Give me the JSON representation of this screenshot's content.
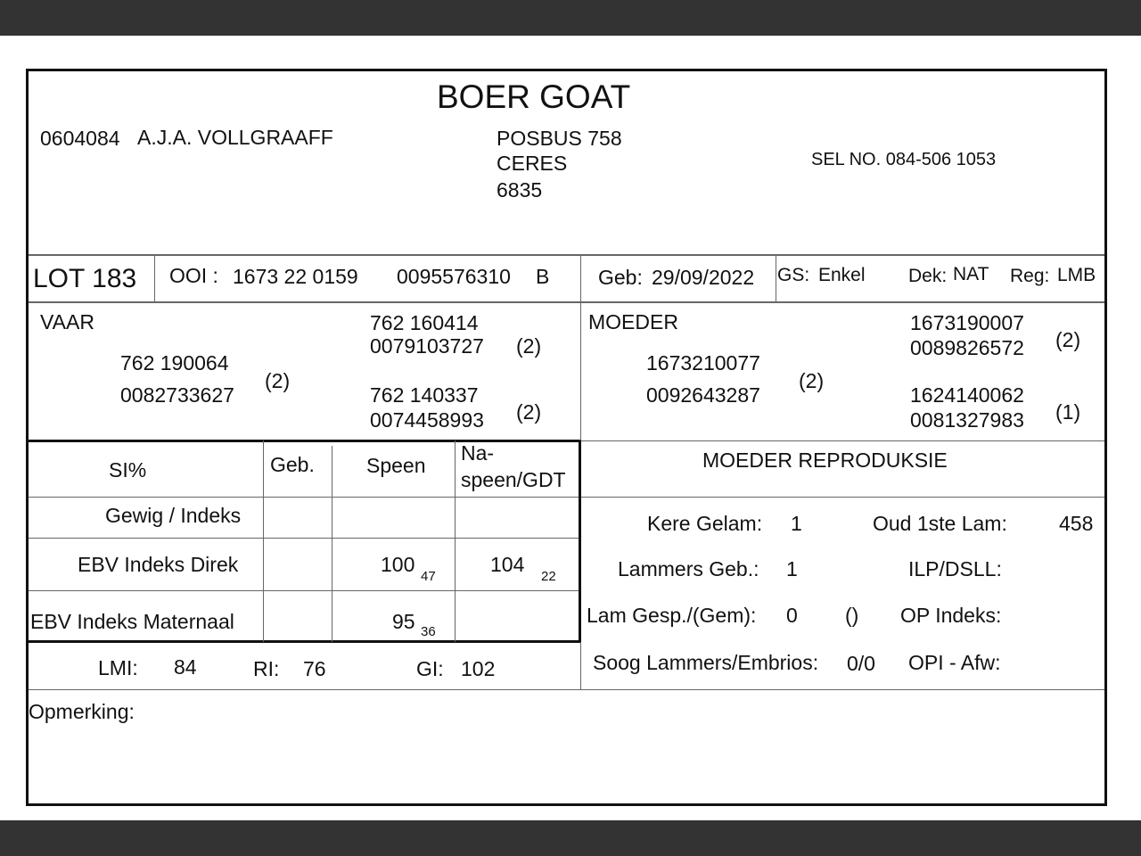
{
  "title": "BOER GOAT",
  "owner": {
    "code": "0604084",
    "name": "A.J.A. VOLLGRAAFF",
    "address": [
      "POSBUS 758",
      "CERES",
      "6835"
    ],
    "phone": "SEL NO. 084-506 1053"
  },
  "lot": {
    "label": "LOT 183",
    "ooi_label": "OOI :",
    "ooi_id": "1673 22 0159",
    "ooi_no": "0095576310",
    "ooi_class": "B",
    "geb_label": "Geb:",
    "geb": "29/09/2022",
    "gs_label": "GS:",
    "gs": "Enkel",
    "dek_label": "Dek:",
    "dek": "NAT",
    "reg_label": "Reg:",
    "reg": "LMB"
  },
  "vaar": {
    "label": "VAAR",
    "id": "762 190064",
    "no": "0082733627",
    "count": "(2)",
    "sire": {
      "id": "762 160414",
      "no": "0079103727",
      "count": "(2)"
    },
    "dam": {
      "id": "762 140337",
      "no": "0074458993",
      "count": "(2)"
    }
  },
  "moeder": {
    "label": "MOEDER",
    "id": "1673210077",
    "no": "0092643287",
    "count": "(2)",
    "sire": {
      "id": "1673190007",
      "no": "0089826572",
      "count": "(2)"
    },
    "dam": {
      "id": "1624140062",
      "no": "0081327983",
      "count": "(1)"
    }
  },
  "ebv": {
    "headers": [
      "SI%",
      "Geb.",
      "Speen",
      "Na-",
      "speen/GDT"
    ],
    "rows": [
      {
        "label": "Gewig / Indeks"
      },
      {
        "label": "EBV Indeks Direk",
        "speen": "100",
        "speen_acc": "47",
        "naspeen": "104",
        "naspeen_acc": "22"
      },
      {
        "label": "EBV Indeks Maternaal",
        "speen": "95",
        "speen_acc": "36"
      }
    ]
  },
  "indices": {
    "lmi_label": "LMI:",
    "lmi": "84",
    "ri_label": "RI:",
    "ri": "76",
    "gi_label": "GI:",
    "gi": "102"
  },
  "repro": {
    "title": "MOEDER REPRODUKSIE",
    "kere_label": "Kere Gelam:",
    "kere": "1",
    "oud_label": "Oud 1ste Lam:",
    "oud": "458",
    "lammers_label": "Lammers Geb.:",
    "lammers": "1",
    "ilp_label": "ILP/DSLL:",
    "gesp_label": "Lam Gesp./(Gem):",
    "gesp": "0",
    "gem": "()",
    "op_label": "OP Indeks:",
    "soog_label": "Soog Lammers/Embrios:",
    "soog": "0/0",
    "opi_label": "OPI - Afw:"
  },
  "remarks_label": "Opmerking:"
}
